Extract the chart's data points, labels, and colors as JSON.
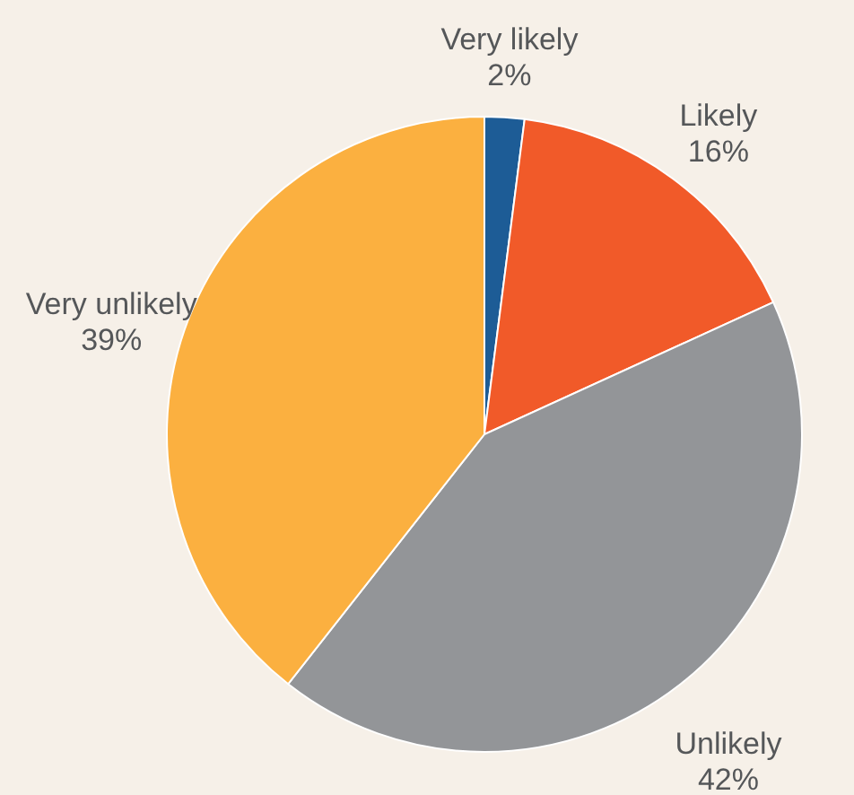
{
  "chart_data": {
    "type": "pie",
    "categories": [
      "Very likely",
      "Likely",
      "Unlikely",
      "Very unlikely"
    ],
    "values": [
      2,
      16,
      42,
      39
    ],
    "colors": [
      "#1d5c96",
      "#f15a29",
      "#939598",
      "#fbb040"
    ],
    "value_labels": [
      "2%",
      "16%",
      "42%",
      "39%"
    ]
  }
}
